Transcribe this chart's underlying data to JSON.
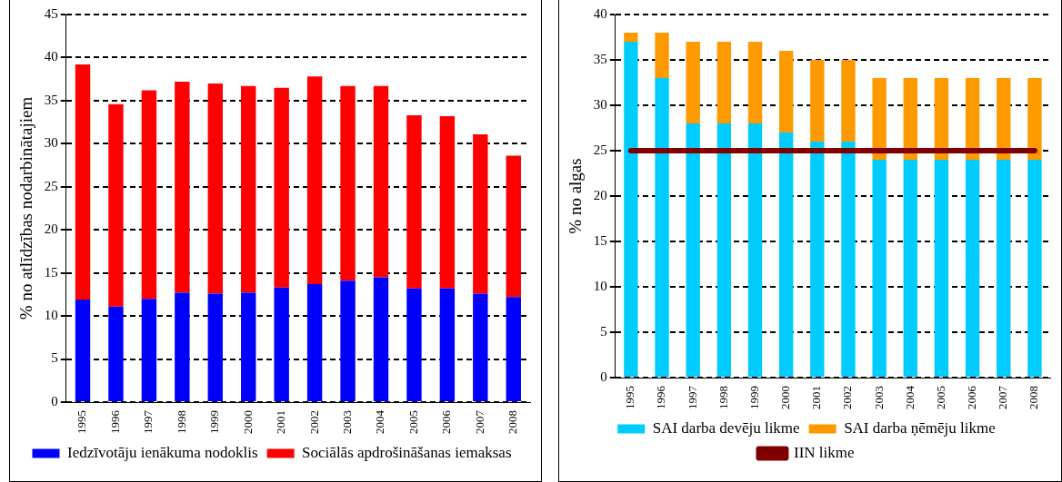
{
  "chart_data": [
    {
      "type": "bar",
      "stacked": true,
      "ylabel": "% no atlīdzības nodarbinātajiem",
      "categories": [
        "1995",
        "1996",
        "1997",
        "1998",
        "1999",
        "2000",
        "2001",
        "2002",
        "2003",
        "2004",
        "2005",
        "2006",
        "2007",
        "2008"
      ],
      "series": [
        {
          "name": "Iedzīvotāju ienākuma nodoklis",
          "color": "#0000ff",
          "values": [
            11.9,
            11.1,
            12.0,
            12.7,
            12.6,
            12.7,
            13.3,
            13.7,
            14.1,
            14.5,
            13.2,
            13.2,
            12.6,
            12.2
          ]
        },
        {
          "name": "Sociālās apdrošināšanas iemaksas",
          "color": "#ff0000",
          "values": [
            27.3,
            23.5,
            24.2,
            24.5,
            24.4,
            24.0,
            23.2,
            24.1,
            22.6,
            22.2,
            20.1,
            20.0,
            18.5,
            16.4
          ]
        }
      ],
      "ylim": [
        0,
        45
      ],
      "yticks": [
        0,
        5,
        10,
        15,
        20,
        25,
        30,
        35,
        40,
        45
      ],
      "grid": "y",
      "legend": "bottom"
    },
    {
      "type": "bar",
      "stacked": true,
      "ylabel": "% no algas",
      "categories": [
        "1995",
        "1996",
        "1997",
        "1998",
        "1999",
        "2000",
        "2001",
        "2002",
        "2003",
        "2004",
        "2005",
        "2006",
        "2007",
        "2008"
      ],
      "series": [
        {
          "name": "SAI darba devēju likme",
          "color": "#00ccff",
          "values": [
            37,
            33,
            28,
            28,
            28,
            27,
            26,
            26,
            24,
            24,
            24,
            24,
            24,
            24
          ]
        },
        {
          "name": "SAI darba ņēmēju likme",
          "color": "#ff9900",
          "values": [
            1,
            5,
            9,
            9,
            9,
            9,
            9,
            9,
            9,
            9,
            9,
            9,
            9,
            9
          ]
        },
        {
          "name": "IIN likme",
          "type": "line",
          "color": "#800000",
          "values": [
            25,
            25,
            25,
            25,
            25,
            25,
            25,
            25,
            25,
            25,
            25,
            25,
            25,
            25
          ]
        }
      ],
      "ylim": [
        0,
        40
      ],
      "yticks": [
        0,
        5,
        10,
        15,
        20,
        25,
        30,
        35,
        40
      ],
      "grid": "y",
      "legend": "bottom"
    }
  ]
}
